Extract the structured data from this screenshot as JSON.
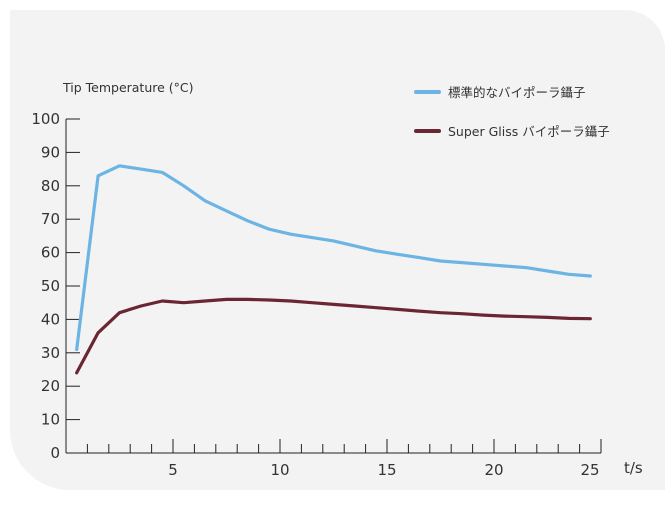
{
  "chart_data": {
    "type": "line",
    "ylabel": "Tip Temperature (°C)",
    "xlabel": "t/s",
    "xlim": [
      0,
      25
    ],
    "ylim": [
      0,
      100
    ],
    "xticks": [
      5,
      10,
      15,
      20,
      25
    ],
    "yticks": [
      0,
      10,
      20,
      30,
      40,
      50,
      60,
      70,
      80,
      90,
      100
    ],
    "legend_position": "top-right",
    "grid": false,
    "series": [
      {
        "name": "標準的なバイポーラ鑷子",
        "color": "#6cb4e4",
        "x": [
          0.5,
          1.5,
          2.5,
          3.5,
          4.5,
          5.5,
          6.5,
          7.5,
          8.5,
          9.5,
          10.5,
          11.5,
          12.5,
          13.5,
          14.5,
          15.5,
          16.5,
          17.5,
          18.5,
          19.5,
          20.5,
          21.5,
          22.5,
          23.5,
          24.5
        ],
        "values": [
          31,
          83,
          86,
          85,
          84,
          80,
          75.5,
          72.5,
          69.5,
          67,
          65.5,
          64.5,
          63.5,
          62,
          60.5,
          59.5,
          58.5,
          57.5,
          57,
          56.5,
          56,
          55.5,
          54.5,
          53.5,
          53
        ]
      },
      {
        "name": "Super Gliss バイポーラ鑷子",
        "color": "#6a2733",
        "x": [
          0.5,
          1.5,
          2.5,
          3.5,
          4.5,
          5.5,
          6.5,
          7.5,
          8.5,
          9.5,
          10.5,
          11.5,
          12.5,
          13.5,
          14.5,
          15.5,
          16.5,
          17.5,
          18.5,
          19.5,
          20.5,
          21.5,
          22.5,
          23.5,
          24.5
        ],
        "values": [
          24,
          36,
          42,
          44,
          45.5,
          45,
          45.5,
          46,
          46,
          45.8,
          45.5,
          45,
          44.5,
          44,
          43.5,
          43,
          42.5,
          42,
          41.7,
          41.3,
          41,
          40.8,
          40.6,
          40.3,
          40.2
        ]
      }
    ]
  }
}
